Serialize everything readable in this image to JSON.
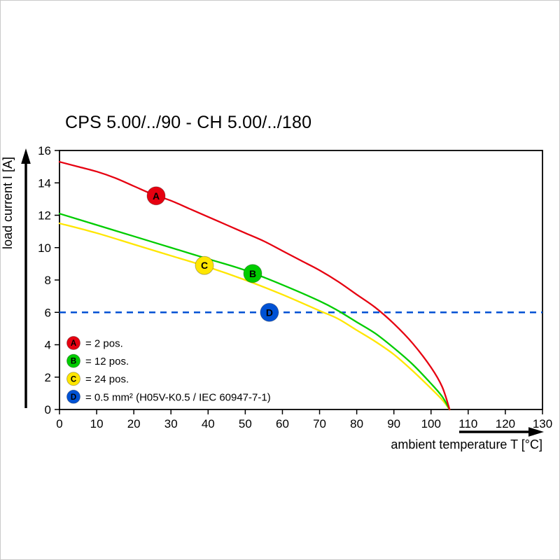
{
  "title": "CPS 5.00/../90 - CH 5.00/../180",
  "chart_data": {
    "type": "line",
    "title": "CPS 5.00/../90 - CH 5.00/../180",
    "xlabel": "ambient temperature T [°C]",
    "ylabel": "load current I [A]",
    "xlim": [
      0,
      130
    ],
    "ylim": [
      0,
      16
    ],
    "xticks": [
      0,
      10,
      20,
      30,
      40,
      50,
      60,
      70,
      80,
      90,
      100,
      110,
      120,
      130
    ],
    "yticks": [
      0,
      2,
      4,
      6,
      8,
      10,
      12,
      14,
      16
    ],
    "grid": false,
    "legend_position": "inside bottom-left",
    "series": [
      {
        "name": "A",
        "label": "= 2 pos.",
        "color": "#e60010",
        "points": [
          [
            0,
            15.3
          ],
          [
            5,
            15.0
          ],
          [
            10,
            14.7
          ],
          [
            15,
            14.3
          ],
          [
            20,
            13.8
          ],
          [
            25,
            13.3
          ],
          [
            30,
            12.9
          ],
          [
            35,
            12.4
          ],
          [
            40,
            11.9
          ],
          [
            45,
            11.4
          ],
          [
            50,
            10.9
          ],
          [
            55,
            10.4
          ],
          [
            60,
            9.8
          ],
          [
            65,
            9.2
          ],
          [
            70,
            8.6
          ],
          [
            75,
            7.9
          ],
          [
            80,
            7.1
          ],
          [
            85,
            6.3
          ],
          [
            90,
            5.3
          ],
          [
            95,
            4.1
          ],
          [
            100,
            2.6
          ],
          [
            103,
            1.4
          ],
          [
            105,
            0
          ]
        ],
        "marker": {
          "x": 26,
          "y": 13.2
        }
      },
      {
        "name": "B",
        "label": "= 12 pos.",
        "color": "#00cc00",
        "points": [
          [
            0,
            12.1
          ],
          [
            10,
            11.4
          ],
          [
            20,
            10.7
          ],
          [
            30,
            10.0
          ],
          [
            40,
            9.3
          ],
          [
            50,
            8.6
          ],
          [
            60,
            7.7
          ],
          [
            70,
            6.7
          ],
          [
            75,
            6.1
          ],
          [
            80,
            5.4
          ],
          [
            85,
            4.7
          ],
          [
            90,
            3.8
          ],
          [
            95,
            2.8
          ],
          [
            100,
            1.6
          ],
          [
            103,
            0.8
          ],
          [
            105,
            0
          ]
        ],
        "marker": {
          "x": 52,
          "y": 8.4
        }
      },
      {
        "name": "C",
        "label": "= 24 pos.",
        "color": "#ffe600",
        "points": [
          [
            0,
            11.5
          ],
          [
            10,
            10.9
          ],
          [
            20,
            10.2
          ],
          [
            30,
            9.5
          ],
          [
            40,
            8.8
          ],
          [
            50,
            8.0
          ],
          [
            60,
            7.1
          ],
          [
            70,
            6.1
          ],
          [
            75,
            5.6
          ],
          [
            80,
            4.9
          ],
          [
            85,
            4.2
          ],
          [
            90,
            3.4
          ],
          [
            95,
            2.4
          ],
          [
            100,
            1.3
          ],
          [
            103,
            0.6
          ],
          [
            105,
            0
          ]
        ],
        "marker": {
          "x": 39,
          "y": 8.9
        }
      },
      {
        "name": "D",
        "label": "= 0.5 mm² (H05V-K0.5 / IEC 60947-7-1)",
        "color": "#0052d4",
        "hline": 6,
        "dashed": true,
        "marker": {
          "x": 56.5,
          "y": 6
        }
      }
    ]
  }
}
